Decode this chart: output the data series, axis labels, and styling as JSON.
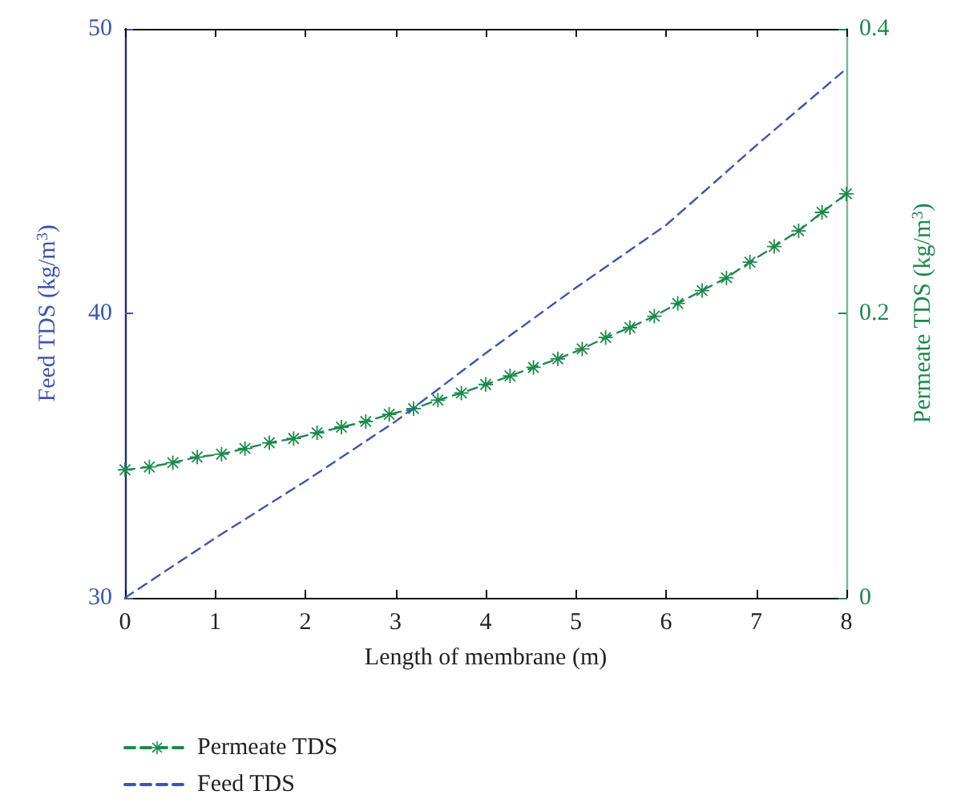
{
  "chart_data": {
    "type": "line",
    "xlabel": "Length of membrane (m)",
    "ylabel": "Feed TDS (kg/m$^{3}$)",
    "y2label": "Permeate TDS (kg/m$^{3}$)",
    "xlim": [
      0,
      8
    ],
    "xticks": [
      0,
      1,
      2,
      3,
      4,
      5,
      6,
      7,
      8
    ],
    "ylim": [
      30,
      50
    ],
    "yticks": [
      30,
      40,
      50
    ],
    "y2lim": [
      0,
      0.4
    ],
    "y2ticks": [
      0,
      0.2,
      0.4
    ],
    "grid": false,
    "legend": "bottom left",
    "series": [
      {
        "name": "Permeate TDS",
        "color": "#1a8a4a",
        "axis": "y2",
        "marker": "star",
        "line_style": "dashed",
        "x": [
          0,
          0.27,
          0.53,
          0.8,
          1.07,
          1.33,
          1.6,
          1.87,
          2.13,
          2.4,
          2.67,
          2.93,
          3.2,
          3.47,
          3.73,
          4,
          4.27,
          4.53,
          4.8,
          5.07,
          5.33,
          5.6,
          5.87,
          6.13,
          6.4,
          6.67,
          6.93,
          7.2,
          7.47,
          7.73,
          8
        ],
        "values": [
          0.09,
          0.092,
          0.095,
          0.099,
          0.101,
          0.105,
          0.109,
          0.112,
          0.116,
          0.12,
          0.124,
          0.129,
          0.133,
          0.139,
          0.144,
          0.15,
          0.156,
          0.162,
          0.168,
          0.175,
          0.183,
          0.19,
          0.198,
          0.207,
          0.216,
          0.225,
          0.236,
          0.247,
          0.258,
          0.271,
          0.284
        ]
      },
      {
        "name": "Feed TDS",
        "color": "#3a55b4",
        "axis": "y",
        "marker": "none",
        "line_style": "dashed",
        "x": [
          0,
          1,
          2,
          3,
          4,
          5,
          6,
          7,
          8
        ],
        "values": [
          30,
          32.1,
          34.1,
          36.2,
          38.6,
          40.9,
          43.1,
          45.9,
          48.6
        ]
      }
    ]
  }
}
